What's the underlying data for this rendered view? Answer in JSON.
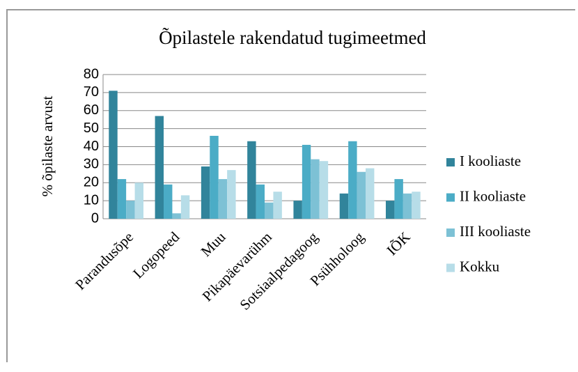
{
  "chart_data": {
    "type": "bar",
    "title": "Õpilastele rakendatud tugimeetmed",
    "y_label": "% õpilaste arvust",
    "categories": [
      "Parandusõpe",
      "Logopeed",
      "Muu",
      "Pikapäevarühm",
      "Sotsiaalpedagoog",
      "Psühholoog",
      "IÕK"
    ],
    "series": [
      {
        "name": "I kooliaste",
        "color": "#31849b",
        "values": [
          71,
          57,
          29,
          43,
          10,
          14,
          10
        ]
      },
      {
        "name": "II kooliaste",
        "color": "#4bacc6",
        "values": [
          22,
          19,
          46,
          19,
          41,
          43,
          22
        ]
      },
      {
        "name": "III kooliaste",
        "color": "#7dc1d5",
        "values": [
          10,
          3,
          22,
          9,
          33,
          26,
          14
        ]
      },
      {
        "name": "Kokku",
        "color": "#b7dde8",
        "values": [
          20,
          13,
          27,
          15,
          32,
          28,
          15
        ]
      }
    ],
    "ylim": [
      0,
      80
    ],
    "yticks": [
      0,
      10,
      20,
      30,
      40,
      50,
      60,
      70,
      80
    ],
    "grid": true,
    "legend": "right"
  }
}
